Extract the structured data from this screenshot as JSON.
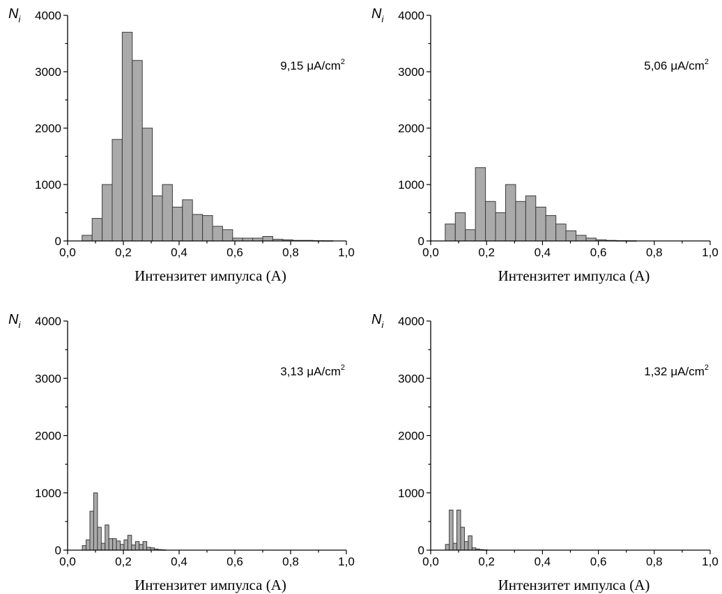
{
  "chart_data": [
    {
      "type": "bar",
      "panel": "top-left",
      "annotation": {
        "value": "9,15",
        "unit": "μA/cm",
        "sup": "2"
      },
      "ylabel": {
        "main": "N",
        "sub": "i"
      },
      "xlabel": "Интензитет импулса (A)",
      "xlim": [
        0,
        1.0
      ],
      "ylim": [
        0,
        4000
      ],
      "xticks": [
        "0,0",
        "0,2",
        "0,4",
        "0,6",
        "0,8",
        "1,0"
      ],
      "yticks": [
        "0",
        "1000",
        "2000",
        "3000",
        "4000"
      ],
      "bin_width": 0.036,
      "x": [
        0.07,
        0.106,
        0.142,
        0.178,
        0.214,
        0.25,
        0.286,
        0.322,
        0.358,
        0.394,
        0.43,
        0.466,
        0.502,
        0.538,
        0.574,
        0.61,
        0.646,
        0.682,
        0.718,
        0.754,
        0.79,
        0.826,
        0.862,
        0.898,
        0.934
      ],
      "values": [
        100,
        400,
        1000,
        1800,
        3700,
        3200,
        2000,
        800,
        1000,
        600,
        730,
        470,
        450,
        260,
        200,
        50,
        50,
        50,
        80,
        30,
        20,
        10,
        10,
        5,
        3
      ]
    },
    {
      "type": "bar",
      "panel": "top-right",
      "annotation": {
        "value": "5,06",
        "unit": "μA/cm",
        "sup": "2"
      },
      "ylabel": {
        "main": "N",
        "sub": "i"
      },
      "xlabel": "Интензитет импулса (A)",
      "xlim": [
        0,
        1.0
      ],
      "ylim": [
        0,
        4000
      ],
      "xticks": [
        "0,0",
        "0,2",
        "0,4",
        "0,6",
        "0,8",
        "1,0"
      ],
      "yticks": [
        "0",
        "1000",
        "2000",
        "3000",
        "4000"
      ],
      "bin_width": 0.036,
      "x": [
        0.07,
        0.106,
        0.142,
        0.178,
        0.214,
        0.25,
        0.286,
        0.322,
        0.358,
        0.394,
        0.43,
        0.466,
        0.502,
        0.538,
        0.574,
        0.61,
        0.646,
        0.682,
        0.718
      ],
      "values": [
        300,
        500,
        200,
        1300,
        700,
        500,
        1000,
        700,
        800,
        600,
        450,
        300,
        180,
        100,
        50,
        20,
        10,
        5,
        3
      ]
    },
    {
      "type": "bar",
      "panel": "bottom-left",
      "annotation": {
        "value": "3,13",
        "unit": "μA/cm",
        "sup": "2"
      },
      "ylabel": {
        "main": "N",
        "sub": "i"
      },
      "xlabel": "Интензитет импулса (A)",
      "xlim": [
        0,
        1.0
      ],
      "ylim": [
        0,
        4000
      ],
      "xticks": [
        "0,0",
        "0,2",
        "0,4",
        "0,6",
        "0,8",
        "1,0"
      ],
      "yticks": [
        "0",
        "1000",
        "2000",
        "3000",
        "4000"
      ],
      "bin_width": 0.0136,
      "x": [
        0.0596,
        0.0732,
        0.0868,
        0.1004,
        0.114,
        0.1276,
        0.1412,
        0.1548,
        0.1684,
        0.182,
        0.1956,
        0.2092,
        0.2228,
        0.2364,
        0.25,
        0.2636,
        0.2772,
        0.2908,
        0.3044,
        0.318,
        0.3316,
        0.3452
      ],
      "values": [
        80,
        180,
        680,
        1000,
        400,
        120,
        440,
        200,
        200,
        160,
        100,
        180,
        260,
        90,
        150,
        100,
        150,
        50,
        40,
        20,
        10,
        5
      ]
    },
    {
      "type": "bar",
      "panel": "bottom-right",
      "annotation": {
        "value": "1,32",
        "unit": "μA/cm",
        "sup": "2"
      },
      "ylabel": {
        "main": "N",
        "sub": "i"
      },
      "xlabel": "Интензитет импулса (A)",
      "xlim": [
        0,
        1.0
      ],
      "ylim": [
        0,
        4000
      ],
      "xticks": [
        "0,0",
        "0,2",
        "0,4",
        "0,6",
        "0,8",
        "1,0"
      ],
      "yticks": [
        "0",
        "1000",
        "2000",
        "3000",
        "4000"
      ],
      "bin_width": 0.0136,
      "x": [
        0.0596,
        0.0732,
        0.0868,
        0.1004,
        0.114,
        0.1276,
        0.1412,
        0.1548,
        0.1684,
        0.182,
        0.1956
      ],
      "values": [
        100,
        700,
        120,
        700,
        400,
        150,
        250,
        40,
        20,
        10,
        5
      ]
    }
  ]
}
